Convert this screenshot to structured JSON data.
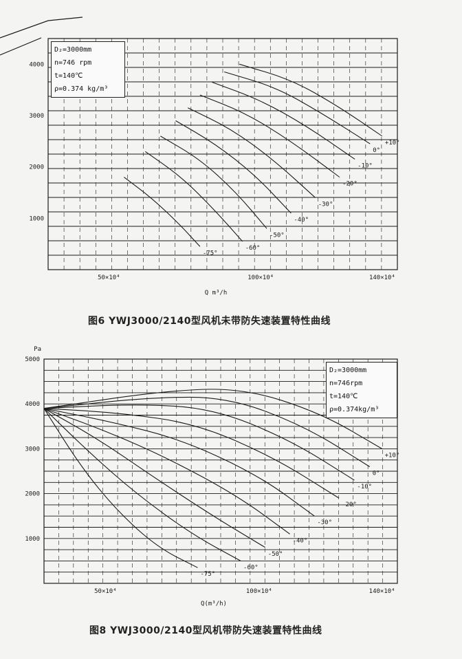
{
  "colors": {
    "ink": "#1a1a1a",
    "paper": "#f4f4f2"
  },
  "charts": [
    {
      "id": "top",
      "caption": "图6 YWJ3000/2140型风机未带防失速装置特性曲线",
      "params": [
        "D₂=3000mm",
        "n=746 rpm",
        "t=140℃",
        "ρ=0.374 kg/m³"
      ],
      "x_label": "Q  m³/h",
      "y_ticks": [
        "4000",
        "3000",
        "2000",
        "1000"
      ],
      "x_ticks": [
        "50×10⁴",
        "100×10⁴",
        "140×10⁴"
      ],
      "angle_labels": [
        "+10°",
        "0°",
        "-10°",
        "-20°",
        "-30°",
        "-40°",
        "-50°",
        "-60°",
        "-75°"
      ]
    },
    {
      "id": "bottom",
      "caption": "图8 YWJ3000/2140型风机带防失速装置特性曲线",
      "params": [
        "D₂=3000mm",
        "n=746rpm",
        "t=140℃",
        "ρ=0.374kg/m³"
      ],
      "x_label": "Q(m³/h)",
      "y_unit": "Pa",
      "y_ticks": [
        "5000",
        "4000",
        "3000",
        "2000",
        "1000"
      ],
      "x_ticks": [
        "50×10⁴",
        "100×10⁴",
        "140×10⁴"
      ],
      "angle_labels": [
        "+10°",
        "0°",
        "-10°",
        "-20°",
        "-30°",
        "-40°",
        "-50°",
        "-60°",
        "-75°"
      ]
    }
  ],
  "chart_data": [
    {
      "type": "line",
      "xlabel": "Q  m³/h",
      "ylabel": "",
      "xlim": [
        30,
        145
      ],
      "ylim": [
        0,
        4500
      ],
      "x_unit_note": "×10⁴ m³/h",
      "series": [
        {
          "name": "+10°",
          "points": [
            [
              93,
              4000
            ],
            [
              110,
              3700
            ],
            [
              125,
              3200
            ],
            [
              140,
              2600
            ]
          ]
        },
        {
          "name": "0°",
          "points": [
            [
              88,
              3850
            ],
            [
              105,
              3550
            ],
            [
              120,
              3050
            ],
            [
              136,
              2450
            ]
          ]
        },
        {
          "name": "-10°",
          "points": [
            [
              84,
              3650
            ],
            [
              100,
              3300
            ],
            [
              115,
              2800
            ],
            [
              131,
              2150
            ]
          ]
        },
        {
          "name": "-20°",
          "points": [
            [
              80,
              3400
            ],
            [
              95,
              3050
            ],
            [
              110,
              2500
            ],
            [
              126,
              1800
            ]
          ]
        },
        {
          "name": "-30°",
          "points": [
            [
              76,
              3150
            ],
            [
              90,
              2750
            ],
            [
              104,
              2150
            ],
            [
              118,
              1400
            ]
          ]
        },
        {
          "name": "-40°",
          "points": [
            [
              72,
              2900
            ],
            [
              85,
              2450
            ],
            [
              98,
              1850
            ],
            [
              110,
              1100
            ]
          ]
        },
        {
          "name": "-50°",
          "points": [
            [
              67,
              2600
            ],
            [
              80,
              2150
            ],
            [
              92,
              1500
            ],
            [
              102,
              800
            ]
          ]
        },
        {
          "name": "-60°",
          "points": [
            [
              62,
              2300
            ],
            [
              74,
              1800
            ],
            [
              85,
              1150
            ],
            [
              94,
              550
            ]
          ]
        },
        {
          "name": "-75°",
          "points": [
            [
              55,
              1800
            ],
            [
              64,
              1400
            ],
            [
              73,
              900
            ],
            [
              80,
              450
            ]
          ]
        }
      ]
    },
    {
      "type": "line",
      "xlabel": "Q(m³/h)",
      "ylabel": "Pa",
      "xlim": [
        30,
        145
      ],
      "ylim": [
        0,
        5000
      ],
      "x_unit_note": "×10⁴ m³/h",
      "series": [
        {
          "name": "+10°",
          "points": [
            [
              30,
              3900
            ],
            [
              70,
              4300
            ],
            [
              95,
              4350
            ],
            [
              120,
              3800
            ],
            [
              140,
              3000
            ]
          ]
        },
        {
          "name": "0°",
          "points": [
            [
              30,
              3900
            ],
            [
              65,
              4150
            ],
            [
              90,
              4150
            ],
            [
              115,
              3500
            ],
            [
              136,
              2600
            ]
          ]
        },
        {
          "name": "-10°",
          "points": [
            [
              30,
              3900
            ],
            [
              60,
              4000
            ],
            [
              85,
              3900
            ],
            [
              110,
              3200
            ],
            [
              131,
              2300
            ]
          ]
        },
        {
          "name": "-20°",
          "points": [
            [
              30,
              3900
            ],
            [
              55,
              3800
            ],
            [
              80,
              3550
            ],
            [
              105,
              2800
            ],
            [
              126,
              1900
            ]
          ]
        },
        {
          "name": "-30°",
          "points": [
            [
              30,
              3900
            ],
            [
              52,
              3600
            ],
            [
              75,
              3200
            ],
            [
              100,
              2400
            ],
            [
              118,
              1500
            ]
          ]
        },
        {
          "name": "-40°",
          "points": [
            [
              30,
              3900
            ],
            [
              50,
              3400
            ],
            [
              70,
              2800
            ],
            [
              93,
              1950
            ],
            [
              110,
              1100
            ]
          ]
        },
        {
          "name": "-50°",
          "points": [
            [
              30,
              3900
            ],
            [
              48,
              3200
            ],
            [
              65,
              2400
            ],
            [
              85,
              1500
            ],
            [
              102,
              800
            ]
          ]
        },
        {
          "name": "-60°",
          "points": [
            [
              30,
              3900
            ],
            [
              45,
              2900
            ],
            [
              60,
              2000
            ],
            [
              78,
              1100
            ],
            [
              94,
              500
            ]
          ]
        },
        {
          "name": "-75°",
          "points": [
            [
              30,
              3900
            ],
            [
              42,
              2600
            ],
            [
              54,
              1600
            ],
            [
              67,
              800
            ],
            [
              80,
              350
            ]
          ]
        }
      ]
    }
  ]
}
